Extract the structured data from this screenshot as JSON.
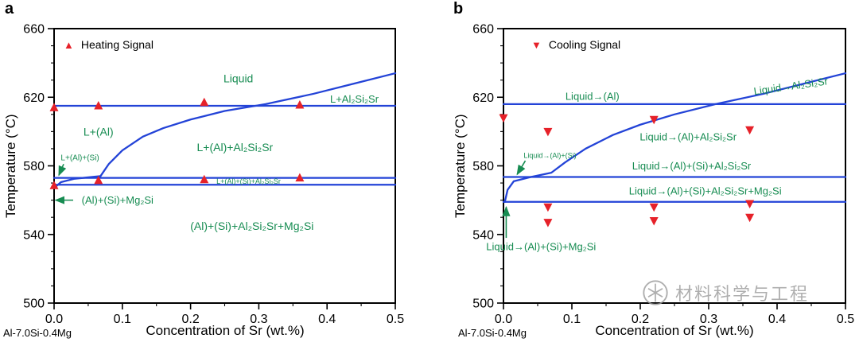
{
  "chart_data": [
    {
      "type": "line",
      "panel_label": "a",
      "xlabel": "Concentration of Sr (wt.%)",
      "ylabel": "Temperature (°C)",
      "alloy_label": "Al-7.0Si-0.4Mg",
      "legend_label": "Heating Signal",
      "legend_marker": "up-triangle",
      "legend_glyph": "▲",
      "xlim": [
        0,
        0.5
      ],
      "ylim": [
        500,
        660
      ],
      "xticks": [
        "0.0",
        "0.1",
        "0.2",
        "0.3",
        "0.4",
        "0.5"
      ],
      "yticks": [
        500,
        540,
        580,
        620,
        660
      ],
      "x_minor_step": 0.05,
      "y_minor_step": 10,
      "line_color": "#2343d7",
      "label_color": "#178c52",
      "marker_color": "#e62129",
      "boundary_lines": [
        {
          "name": "liquidus-al-horizontal",
          "points": [
            [
              0,
              615
            ],
            [
              0.5,
              615
            ]
          ]
        },
        {
          "name": "al2si2sr-liquidus-curve",
          "points": [
            [
              0.068,
              574
            ],
            [
              0.08,
              581
            ],
            [
              0.1,
              589
            ],
            [
              0.13,
              597
            ],
            [
              0.16,
              602
            ],
            [
              0.2,
              607
            ],
            [
              0.25,
              612
            ],
            [
              0.31,
              616
            ],
            [
              0.38,
              622
            ],
            [
              0.44,
              628
            ],
            [
              0.5,
              634
            ]
          ]
        },
        {
          "name": "eutectic-573",
          "points": [
            [
              0,
              573
            ],
            [
              0.5,
              573
            ]
          ]
        },
        {
          "name": "eutectic-569",
          "points": [
            [
              0,
              569
            ],
            [
              0.5,
              569
            ]
          ]
        },
        {
          "name": "left-solvus",
          "points": [
            [
              0,
              567
            ],
            [
              0.01,
              570.5
            ],
            [
              0.03,
              572.5
            ],
            [
              0.068,
              574
            ]
          ]
        }
      ],
      "points": {
        "name": "heating-signal",
        "marker": "up",
        "values": [
          [
            0,
            614
          ],
          [
            0.065,
            615
          ],
          [
            0.22,
            617
          ],
          [
            0.36,
            615.5
          ],
          [
            0,
            568.5
          ],
          [
            0.065,
            571.5
          ],
          [
            0.22,
            572
          ],
          [
            0.36,
            573
          ]
        ]
      },
      "region_labels": [
        {
          "text": "Liquid",
          "x": 0.27,
          "y": 631,
          "size": 14
        },
        {
          "text": "L+Al₂Si₂Sr",
          "x": 0.44,
          "y": 619,
          "size": 13
        },
        {
          "text": "L+(Al)",
          "x": 0.065,
          "y": 600,
          "size": 14
        },
        {
          "text": "L+(Al)+Al₂Si₂Sr",
          "x": 0.265,
          "y": 591,
          "size": 14
        },
        {
          "text": "L+(Al)+(Si)",
          "x": 0.038,
          "y": 584.5,
          "size": 10,
          "arrow": [
            0.014,
            581,
            0.007,
            574.5
          ]
        },
        {
          "text": "L+(Al)+(Si)+Al₂Si₂Sr",
          "x": 0.285,
          "y": 570.9,
          "size": 9
        },
        {
          "text": "(Al)+(Si)+Mg₂Si",
          "x": 0.093,
          "y": 560,
          "size": 13,
          "arrow": [
            0.028,
            560,
            0.002,
            560
          ]
        },
        {
          "text": "(Al)+(Si)+Al₂Si₂Sr+Mg₂Si",
          "x": 0.29,
          "y": 545,
          "size": 14
        }
      ]
    },
    {
      "type": "line",
      "panel_label": "b",
      "xlabel": "Concentration of Sr (wt.%)",
      "ylabel": "Temperature (°C)",
      "alloy_label": "Al-7.0Si-0.4Mg",
      "legend_label": "Cooling Signal",
      "legend_marker": "down-triangle",
      "legend_glyph": "▼",
      "xlim": [
        0,
        0.5
      ],
      "ylim": [
        500,
        660
      ],
      "xticks": [
        "0.0",
        "0.1",
        "0.2",
        "0.3",
        "0.4",
        "0.5"
      ],
      "yticks": [
        500,
        540,
        580,
        620,
        660
      ],
      "x_minor_step": 0.05,
      "y_minor_step": 10,
      "line_color": "#2343d7",
      "label_color": "#178c52",
      "marker_color": "#e62129",
      "boundary_lines": [
        {
          "name": "liquidus-al-horizontal",
          "points": [
            [
              0,
              616
            ],
            [
              0.5,
              616
            ]
          ]
        },
        {
          "name": "al2si2sr-liquidus-curve",
          "points": [
            [
              0.04,
              573.5
            ],
            [
              0.07,
              576
            ],
            [
              0.09,
              582
            ],
            [
              0.12,
              590
            ],
            [
              0.16,
              598
            ],
            [
              0.2,
              604
            ],
            [
              0.25,
              610
            ],
            [
              0.31,
              616
            ],
            [
              0.38,
              622
            ],
            [
              0.44,
              628
            ],
            [
              0.5,
              634
            ]
          ]
        },
        {
          "name": "eutectic-573",
          "points": [
            [
              0,
              573.5
            ],
            [
              0.5,
              573.5
            ]
          ]
        },
        {
          "name": "eutectic-559",
          "points": [
            [
              0,
              559
            ],
            [
              0.5,
              559
            ]
          ]
        },
        {
          "name": "left-solvus",
          "points": [
            [
              0.002,
              559
            ],
            [
              0.006,
              566
            ],
            [
              0.015,
              571
            ],
            [
              0.04,
              573.5
            ]
          ]
        }
      ],
      "points": {
        "name": "cooling-signal",
        "marker": "down",
        "values": [
          [
            0,
            608
          ],
          [
            0.065,
            600
          ],
          [
            0.22,
            607
          ],
          [
            0.36,
            601
          ],
          [
            0.065,
            556
          ],
          [
            0.065,
            547
          ],
          [
            0.22,
            556
          ],
          [
            0.22,
            548
          ],
          [
            0.36,
            558
          ],
          [
            0.36,
            550
          ]
        ]
      },
      "region_labels": [
        {
          "text": "Liquid→(Al)",
          "x": 0.13,
          "y": 620.5,
          "size": 13
        },
        {
          "text": "Liquid→Al₂Si₂Sr",
          "x": 0.42,
          "y": 626.5,
          "size": 13,
          "rotate": -8
        },
        {
          "text": "Liquid→(Al)+Al₂Si₂Sr",
          "x": 0.27,
          "y": 597,
          "size": 13
        },
        {
          "text": "Liquid→(Al)+(Si)",
          "x": 0.068,
          "y": 586,
          "size": 9,
          "arrow": [
            0.032,
            583,
            0.02,
            575
          ]
        },
        {
          "text": "Liquid→(Al)+(Si)+Al₂Si₂Sr",
          "x": 0.275,
          "y": 580,
          "size": 13
        },
        {
          "text": "Liquid→(Al)+(Si)+Al₂Si₂Sr+Mg₂Si",
          "x": 0.295,
          "y": 565.5,
          "size": 13
        },
        {
          "text": "Liquid→(Al)+(Si)+Mg₂Si",
          "x": 0.055,
          "y": 533,
          "size": 13,
          "arrow": [
            0.004,
            538,
            0.004,
            556
          ]
        }
      ]
    }
  ],
  "watermark": {
    "text": "材料科学与工程"
  }
}
